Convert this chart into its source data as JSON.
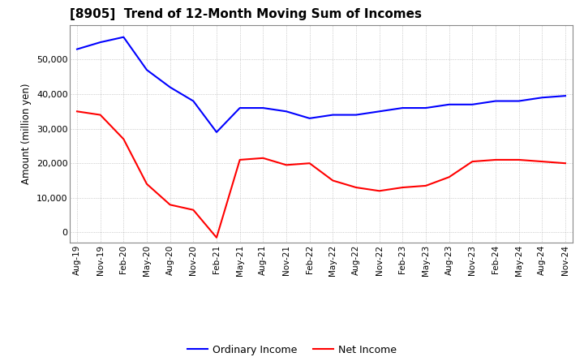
{
  "title": "[8905]  Trend of 12-Month Moving Sum of Incomes",
  "ylabel": "Amount (million yen)",
  "ylim": [
    -3000,
    60000
  ],
  "yticks": [
    0,
    10000,
    20000,
    30000,
    40000,
    50000
  ],
  "background_color": "#ffffff",
  "grid_color": "#aaaaaa",
  "ordinary_income_color": "#0000ff",
  "net_income_color": "#ff0000",
  "x_labels": [
    "Aug-19",
    "Nov-19",
    "Feb-20",
    "May-20",
    "Aug-20",
    "Nov-20",
    "Feb-21",
    "May-21",
    "Aug-21",
    "Nov-21",
    "Feb-22",
    "May-22",
    "Aug-22",
    "Nov-22",
    "Feb-23",
    "May-23",
    "Aug-23",
    "Nov-23",
    "Feb-24",
    "May-24",
    "Aug-24",
    "Nov-24"
  ],
  "ordinary_income": [
    53000,
    55000,
    56500,
    47000,
    42000,
    38000,
    29000,
    36000,
    36000,
    35000,
    33000,
    34000,
    34000,
    35000,
    36000,
    36000,
    37000,
    37000,
    38000,
    38000,
    39000,
    39500
  ],
  "net_income": [
    35000,
    34000,
    27000,
    14000,
    8000,
    6500,
    -1500,
    21000,
    21500,
    19500,
    20000,
    15000,
    13000,
    12000,
    13000,
    13500,
    16000,
    20500,
    21000,
    21000,
    20500,
    20000
  ]
}
